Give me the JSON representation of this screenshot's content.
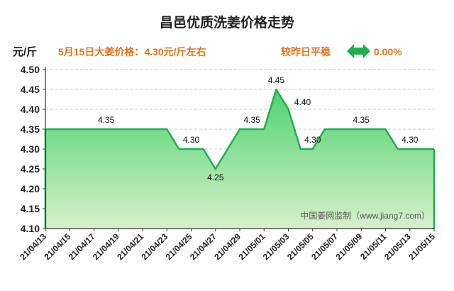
{
  "chart_data": {
    "type": "area",
    "title": "昌邑优质洗姜价格走势",
    "ylabel": "元/斤",
    "ylim": [
      4.1,
      4.5
    ],
    "yticks": [
      "4.10",
      "4.15",
      "4.20",
      "4.25",
      "4.30",
      "4.35",
      "4.40",
      "4.45",
      "4.50"
    ],
    "xticks": [
      "21/04/13",
      "21/04/15",
      "21/04/17",
      "21/04/19",
      "21/04/21",
      "21/04/23",
      "21/04/25",
      "21/04/27",
      "21/04/29",
      "21/05/01",
      "21/05/03",
      "21/05/05",
      "21/05/07",
      "21/05/09",
      "21/05/11",
      "21/05/13",
      "21/05/15"
    ],
    "x": [
      "21/04/13",
      "21/04/23",
      "21/04/24",
      "21/04/25",
      "21/04/26",
      "21/04/27",
      "21/04/29",
      "21/04/30",
      "21/05/01",
      "21/05/02",
      "21/05/03",
      "21/05/04",
      "21/05/05",
      "21/05/06",
      "21/05/10",
      "21/05/11",
      "21/05/12",
      "21/05/14",
      "21/05/15"
    ],
    "values": [
      4.35,
      4.35,
      4.3,
      4.3,
      4.3,
      4.25,
      4.35,
      4.35,
      4.35,
      4.45,
      4.4,
      4.3,
      4.3,
      4.35,
      4.35,
      4.35,
      4.3,
      4.3,
      4.3
    ],
    "labels": [
      {
        "x": "21/04/18",
        "value": 4.35,
        "text": "4.35"
      },
      {
        "x": "21/04/25",
        "value": 4.3,
        "text": "4.30"
      },
      {
        "x": "21/04/27",
        "value": 4.25,
        "text": "4.25"
      },
      {
        "x": "21/04/30",
        "value": 4.35,
        "text": "4.35"
      },
      {
        "x": "21/05/02",
        "value": 4.45,
        "text": "4.45"
      },
      {
        "x": "21/05/03",
        "value": 4.4,
        "text": "4.40"
      },
      {
        "x": "21/05/05",
        "value": 4.3,
        "text": "4.30"
      },
      {
        "x": "21/05/09",
        "value": 4.35,
        "text": "4.35"
      },
      {
        "x": "21/05/13",
        "value": 4.3,
        "text": "4.30"
      }
    ],
    "grid": true,
    "line_color": "#1fae4f",
    "fill_top_color": "#4fd46e",
    "fill_bottom_color": "#d7f0cc"
  },
  "info": {
    "price_note": "5月15日大姜价格：4.30元/斤左右",
    "compare_label": "较昨日平稳",
    "change": "0.00%",
    "arrow_color": "#1fae4f"
  },
  "watermark": "中国姜网监制（www.jiang7.com）"
}
